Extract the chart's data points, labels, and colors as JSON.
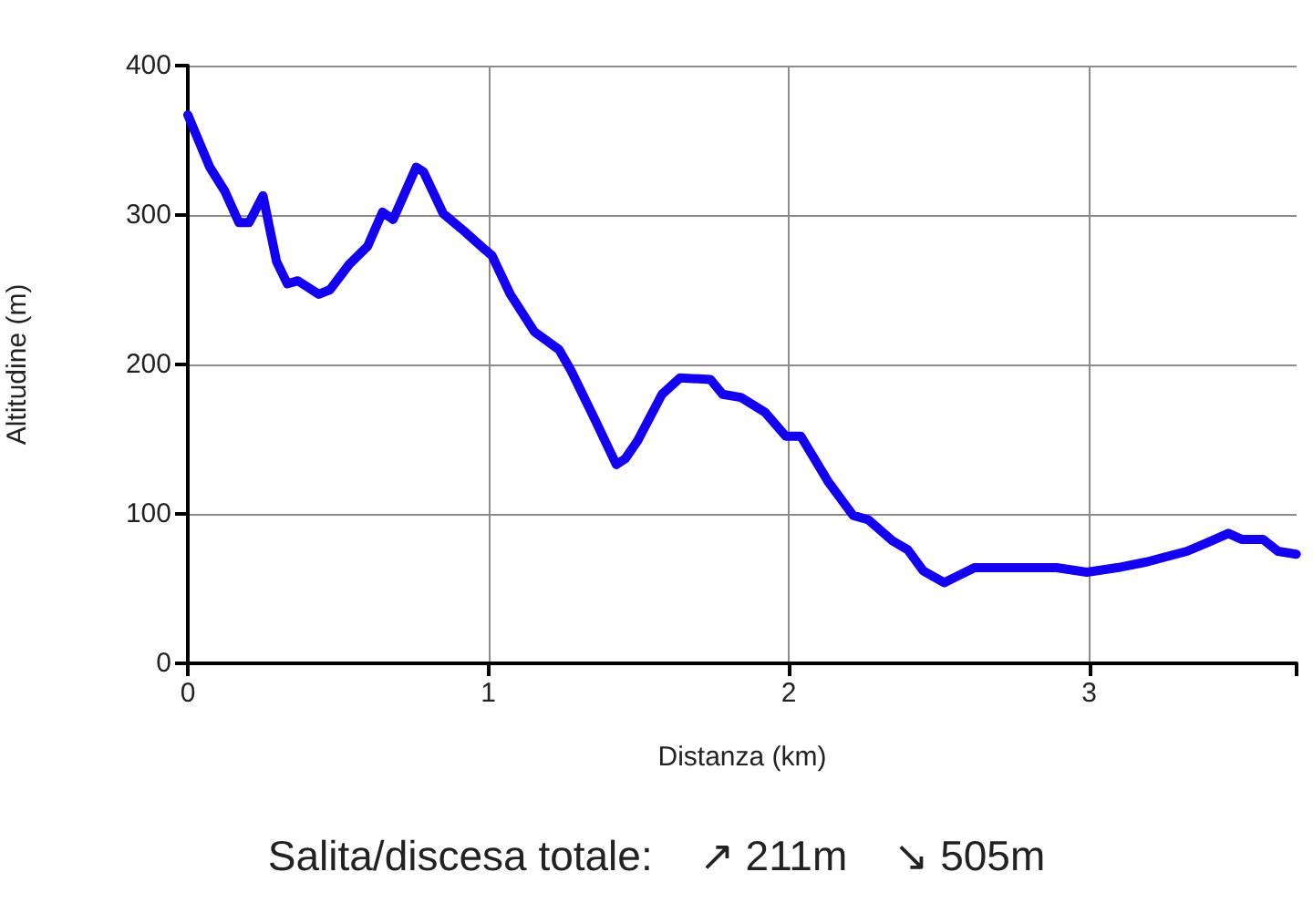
{
  "chart_data": {
    "type": "line",
    "xlabel": "Distanza (km)",
    "ylabel": "Altitudine (m)",
    "annotations": [
      "Salita/discesa totale:    ↗ 211m    ↘ 505m"
    ],
    "series": [
      {
        "color": "#1400f0",
        "x": [
          0,
          0.073,
          0.123,
          0.17,
          0.204,
          0.25,
          0.295,
          0.331,
          0.366,
          0.436,
          0.473,
          0.537,
          0.598,
          0.648,
          0.683,
          0.76,
          0.784,
          0.85,
          0.921,
          0.982,
          1.012,
          1.073,
          1.153,
          1.235,
          1.275,
          1.355,
          1.426,
          1.456,
          1.497,
          1.578,
          1.638,
          1.739,
          1.78,
          1.84,
          1.921,
          1.99,
          2.04,
          2.133,
          2.214,
          2.265,
          2.345,
          2.396,
          2.447,
          2.517,
          2.618,
          2.891,
          2.992,
          3.093,
          3.194,
          3.325,
          3.396,
          3.463,
          3.507,
          3.578,
          3.628,
          3.689
        ],
        "values": [
          367,
          332,
          316,
          295,
          295,
          313,
          269,
          254,
          256,
          247,
          250,
          267,
          279,
          302,
          297,
          332,
          329,
          301,
          289,
          278,
          273,
          247,
          222,
          210,
          196,
          163,
          133,
          137,
          149,
          180,
          191,
          190,
          180,
          178,
          168,
          152,
          152,
          121,
          99,
          96,
          82,
          76,
          62,
          54,
          64,
          64,
          61,
          64,
          68,
          75,
          81,
          87,
          83,
          83,
          75,
          73
        ]
      }
    ],
    "xlim": [
      0,
      3.69
    ],
    "xticks": [
      0,
      1,
      2,
      3,
      {
        "value": 3.69,
        "label": null
      }
    ],
    "ylim": [
      0,
      400
    ],
    "yticks": [
      0,
      100,
      200,
      300,
      400
    ],
    "grid": true,
    "marker": "none",
    "line_style": "solid"
  }
}
